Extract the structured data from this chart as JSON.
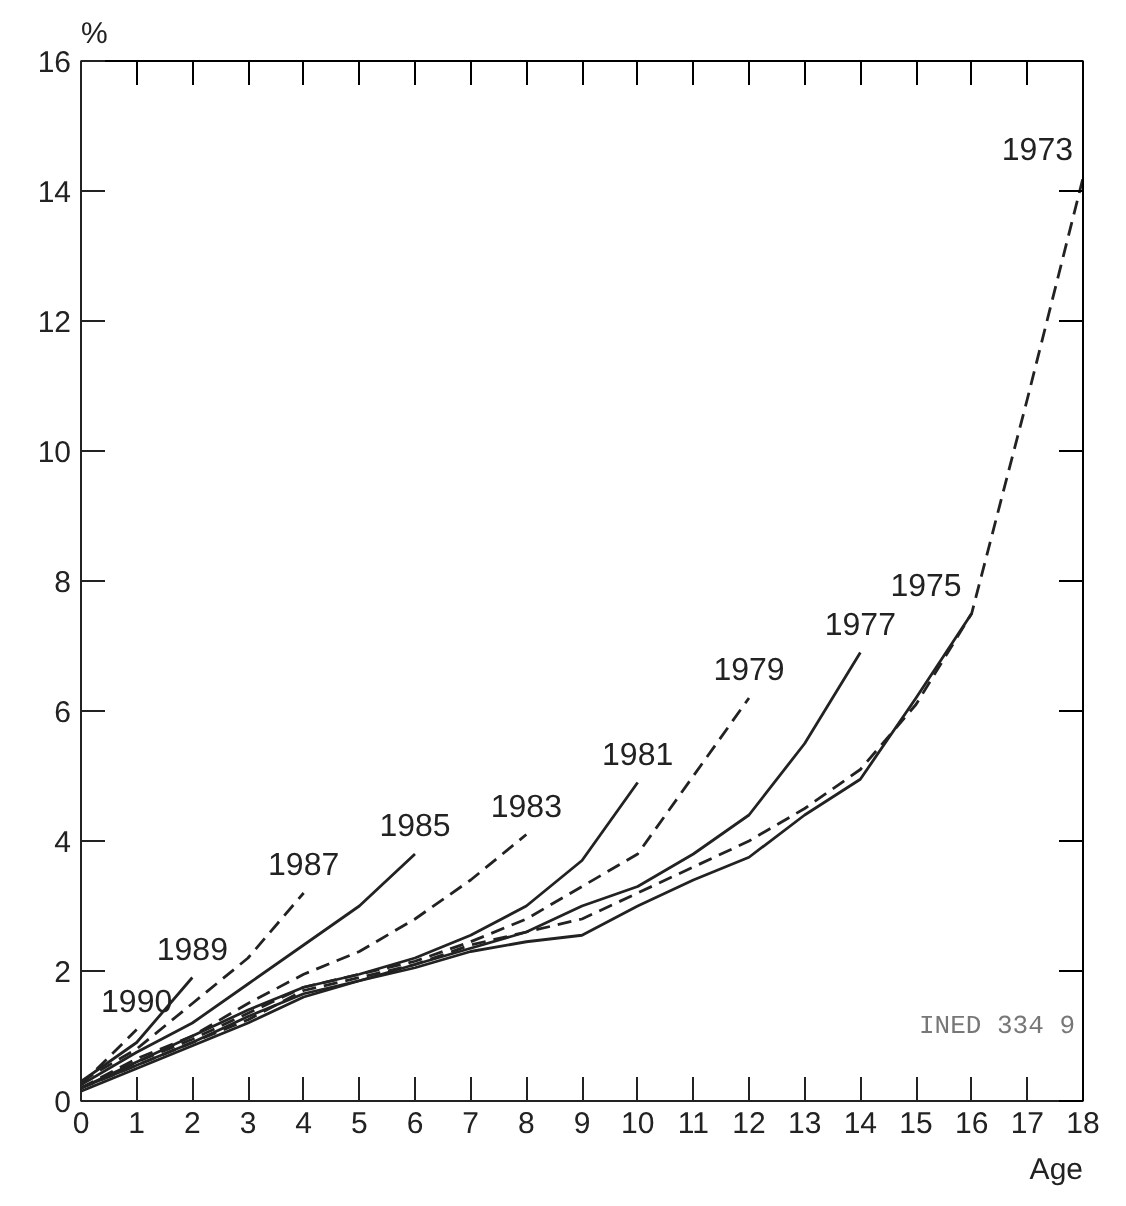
{
  "chart_data": {
    "type": "line",
    "ylabel": "%",
    "xlabel": "Age",
    "xlim": [
      0,
      18
    ],
    "ylim": [
      0,
      16
    ],
    "xticks": [
      0,
      1,
      2,
      3,
      4,
      5,
      6,
      7,
      8,
      9,
      10,
      11,
      12,
      13,
      14,
      15,
      16,
      17,
      18
    ],
    "yticks": [
      0,
      2,
      4,
      6,
      8,
      10,
      12,
      14,
      16
    ],
    "grid": false,
    "marker": "none",
    "annotations": [
      "INED 334 9"
    ],
    "series": [
      {
        "name": "1990",
        "color": "#222222",
        "line_style": "dashed",
        "x": [
          0,
          1
        ],
        "values": [
          0.25,
          1.1
        ]
      },
      {
        "name": "1989",
        "color": "#222222",
        "line_style": "solid",
        "x": [
          0,
          1,
          2
        ],
        "values": [
          0.3,
          0.9,
          1.9
        ]
      },
      {
        "name": "1987",
        "color": "#222222",
        "line_style": "dashed",
        "x": [
          0,
          1,
          2,
          3,
          4
        ],
        "values": [
          0.3,
          0.8,
          1.5,
          2.2,
          3.2
        ]
      },
      {
        "name": "1985",
        "color": "#222222",
        "line_style": "solid",
        "x": [
          0,
          1,
          2,
          3,
          4,
          5,
          6
        ],
        "values": [
          0.25,
          0.75,
          1.2,
          1.8,
          2.4,
          3.0,
          3.8
        ]
      },
      {
        "name": "1983",
        "color": "#222222",
        "line_style": "dashed",
        "x": [
          0,
          1,
          2,
          3,
          4,
          5,
          6,
          7,
          8
        ],
        "values": [
          0.2,
          0.65,
          1.0,
          1.5,
          1.95,
          2.3,
          2.8,
          3.4,
          4.1
        ]
      },
      {
        "name": "1981",
        "color": "#222222",
        "line_style": "solid",
        "x": [
          0,
          1,
          2,
          3,
          4,
          5,
          6,
          7,
          8,
          9,
          10
        ],
        "values": [
          0.2,
          0.6,
          1.0,
          1.4,
          1.75,
          1.95,
          2.2,
          2.55,
          3.0,
          3.7,
          4.9
        ]
      },
      {
        "name": "1979",
        "color": "#222222",
        "line_style": "dashed",
        "x": [
          0,
          1,
          2,
          3,
          4,
          5,
          6,
          7,
          8,
          9,
          10,
          11,
          12
        ],
        "values": [
          0.2,
          0.6,
          0.95,
          1.35,
          1.75,
          1.95,
          2.15,
          2.45,
          2.8,
          3.3,
          3.8,
          5.0,
          6.2
        ]
      },
      {
        "name": "1977",
        "color": "#222222",
        "line_style": "solid",
        "x": [
          0,
          1,
          2,
          3,
          4,
          5,
          6,
          7,
          8,
          9,
          10,
          11,
          12,
          13,
          14
        ],
        "values": [
          0.2,
          0.55,
          0.9,
          1.3,
          1.65,
          1.85,
          2.1,
          2.35,
          2.6,
          3.0,
          3.3,
          3.8,
          4.4,
          5.5,
          6.9
        ]
      },
      {
        "name": "1975",
        "color": "#222222",
        "line_style": "solid",
        "x": [
          0,
          1,
          2,
          3,
          4,
          5,
          6,
          7,
          8,
          9,
          10,
          11,
          12,
          13,
          14,
          15,
          16
        ],
        "values": [
          0.15,
          0.5,
          0.85,
          1.2,
          1.6,
          1.85,
          2.05,
          2.3,
          2.45,
          2.55,
          3.0,
          3.4,
          3.75,
          4.4,
          4.95,
          6.2,
          7.5
        ]
      },
      {
        "name": "1973",
        "color": "#222222",
        "line_style": "dashed",
        "x": [
          0,
          1,
          2,
          3,
          4,
          5,
          6,
          7,
          8,
          9,
          10,
          11,
          12,
          13,
          14,
          15,
          16,
          17,
          18
        ],
        "values": [
          0.2,
          0.55,
          0.9,
          1.25,
          1.7,
          1.9,
          2.1,
          2.4,
          2.6,
          2.8,
          3.2,
          3.6,
          4.0,
          4.5,
          5.1,
          6.1,
          7.5,
          10.8,
          14.2
        ]
      }
    ]
  }
}
